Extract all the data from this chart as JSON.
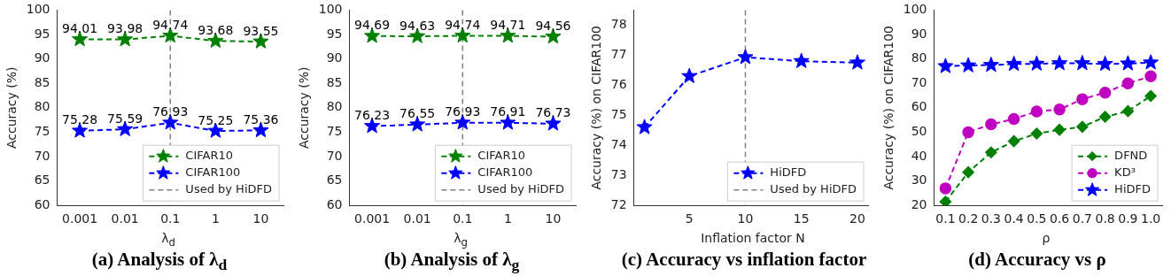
{
  "chart_data": [
    {
      "type": "line",
      "title": "(a) Analysis of λ$_{d}$",
      "xlabel": "λ$_{d}$",
      "ylabel": "Accuracy (%)",
      "categories": [
        "0.001",
        "0.01",
        "0.1",
        "1",
        "10"
      ],
      "series": [
        {
          "name": "CIFAR10",
          "color": "#008000",
          "values": [
            94.01,
            93.98,
            94.74,
            93.68,
            93.55
          ],
          "marker": "star",
          "line_style": "dashed"
        },
        {
          "name": "CIFAR100",
          "color": "#0000ff",
          "values": [
            75.28,
            75.59,
            76.93,
            75.25,
            75.36
          ],
          "marker": "star",
          "line_style": "dashed"
        }
      ],
      "ref_lines": [
        {
          "axis": "x",
          "value": "0.1",
          "label": "Used by HiDFD",
          "color": "#808080",
          "line_style": "dashed"
        }
      ],
      "ylim": [
        60,
        100
      ],
      "yticks": [
        60,
        65,
        70,
        75,
        80,
        85,
        90,
        95,
        100
      ],
      "data_labels": true,
      "legend": "bottom right",
      "grid": false
    },
    {
      "type": "line",
      "title": "(b) Analysis of λ$_{g}$",
      "xlabel": "λ$_{g}$",
      "ylabel": "Accuracy (%)",
      "categories": [
        "0.001",
        "0.01",
        "0.1",
        "1",
        "10"
      ],
      "series": [
        {
          "name": "CIFAR10",
          "color": "#008000",
          "values": [
            94.69,
            94.63,
            94.74,
            94.71,
            94.56
          ],
          "marker": "star",
          "line_style": "dashed"
        },
        {
          "name": "CIFAR100",
          "color": "#0000ff",
          "values": [
            76.23,
            76.55,
            76.93,
            76.91,
            76.73
          ],
          "marker": "star",
          "line_style": "dashed"
        }
      ],
      "ref_lines": [
        {
          "axis": "x",
          "value": "0.1",
          "label": "Used by HiDFD",
          "color": "#808080",
          "line_style": "dashed"
        }
      ],
      "ylim": [
        60,
        100
      ],
      "yticks": [
        60,
        65,
        70,
        75,
        80,
        85,
        90,
        95,
        100
      ],
      "data_labels": true,
      "legend": "bottom right",
      "grid": false
    },
    {
      "type": "line",
      "title": "(c) Accuracy vs inflation factor",
      "xlabel": "Inflation factor N",
      "ylabel": "Accuracy (%) on CIFAR100",
      "x": [
        1,
        5,
        10,
        15,
        20
      ],
      "series": [
        {
          "name": "HiDFD",
          "color": "#0000ff",
          "values": [
            74.6,
            76.3,
            76.93,
            76.8,
            76.75
          ],
          "marker": "star",
          "line_style": "dashed"
        }
      ],
      "ref_lines": [
        {
          "axis": "x",
          "value": 10,
          "label": "Used by HiDFD",
          "color": "#808080",
          "line_style": "dashed"
        }
      ],
      "xlim": [
        0.05,
        20.95
      ],
      "xticks": [
        5,
        10,
        15,
        20
      ],
      "ylim": [
        72,
        78.5
      ],
      "yticks": [
        72,
        73,
        74,
        75,
        76,
        77,
        78
      ],
      "legend": "bottom right",
      "grid": false
    },
    {
      "type": "line",
      "title": "(d) Accuracy vs  ρ",
      "xlabel": "ρ",
      "ylabel": "Accuracy (%) on CIFAR100",
      "categories": [
        "0.1",
        "0.2",
        "0.3",
        "0.4",
        "0.5",
        "0.6",
        "0.7",
        "0.8",
        "0.9",
        "1.0"
      ],
      "series": [
        {
          "name": "DFND",
          "color": "#008000",
          "values": [
            21.5,
            33.6,
            41.7,
            46.3,
            49.4,
            51,
            52.2,
            56.3,
            58.6,
            64.8
          ],
          "marker": "diamond",
          "line_style": "dashed"
        },
        {
          "name": "KD³",
          "color": "#c000c0",
          "values": [
            27,
            50,
            53.2,
            55.4,
            58.5,
            59.3,
            63.5,
            66.2,
            70,
            72.9
          ],
          "marker": "circle",
          "line_style": "dashed"
        },
        {
          "name": "HiDFD",
          "color": "#0000ff",
          "values": [
            77,
            77.3,
            77.5,
            77.9,
            78,
            78.2,
            78.2,
            77.9,
            78.1,
            78.5
          ],
          "marker": "star",
          "line_style": "dashed"
        }
      ],
      "ylim": [
        20,
        100
      ],
      "yticks": [
        20,
        30,
        40,
        50,
        60,
        70,
        80,
        90,
        100
      ],
      "legend": "bottom right",
      "grid": false
    }
  ]
}
